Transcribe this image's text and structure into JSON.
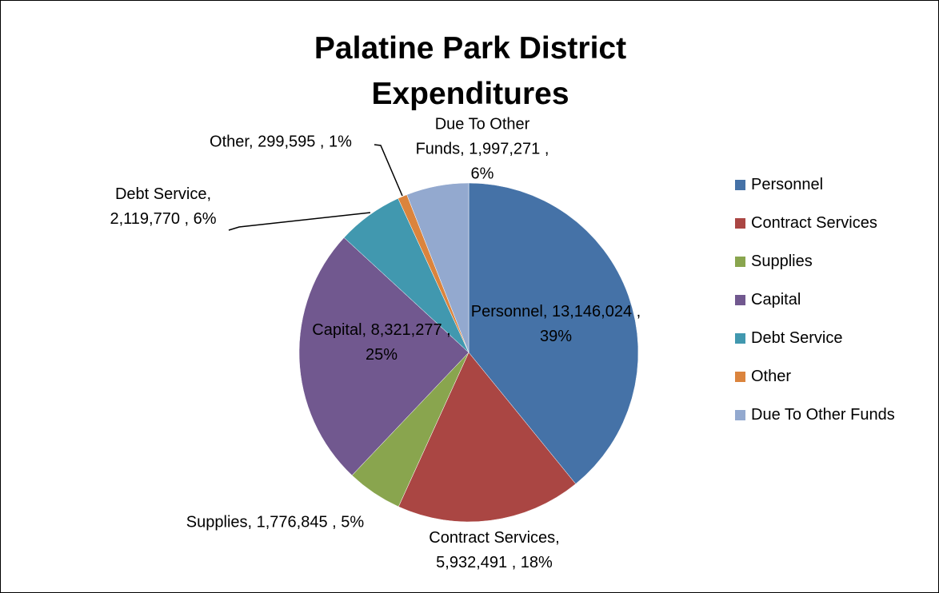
{
  "chart_data": {
    "type": "pie",
    "title": "Palatine Park District Expenditures",
    "categories": [
      "Personnel",
      "Contract Services",
      "Supplies",
      "Capital",
      "Debt Service",
      "Other",
      "Due To Other Funds"
    ],
    "values": [
      13146024,
      5932491,
      1776845,
      8321277,
      2119770,
      299595,
      1997271
    ],
    "value_labels": [
      "Personnel, 13,146,024 , 39%",
      "Contract Services, 5,932,491 , 18%",
      "Supplies, 1,776,845 , 5%",
      "Capital, 8,321,277 , 25%",
      "Debt Service, 2,119,770 , 6%",
      "Other, 299,595 , 1%",
      "Due To Other Funds, 1,997,271 , 6%"
    ],
    "colors": [
      "#4572a7",
      "#aa4643",
      "#89a54e",
      "#71588f",
      "#4198af",
      "#db843d",
      "#93a9cf"
    ],
    "legend": "right"
  }
}
